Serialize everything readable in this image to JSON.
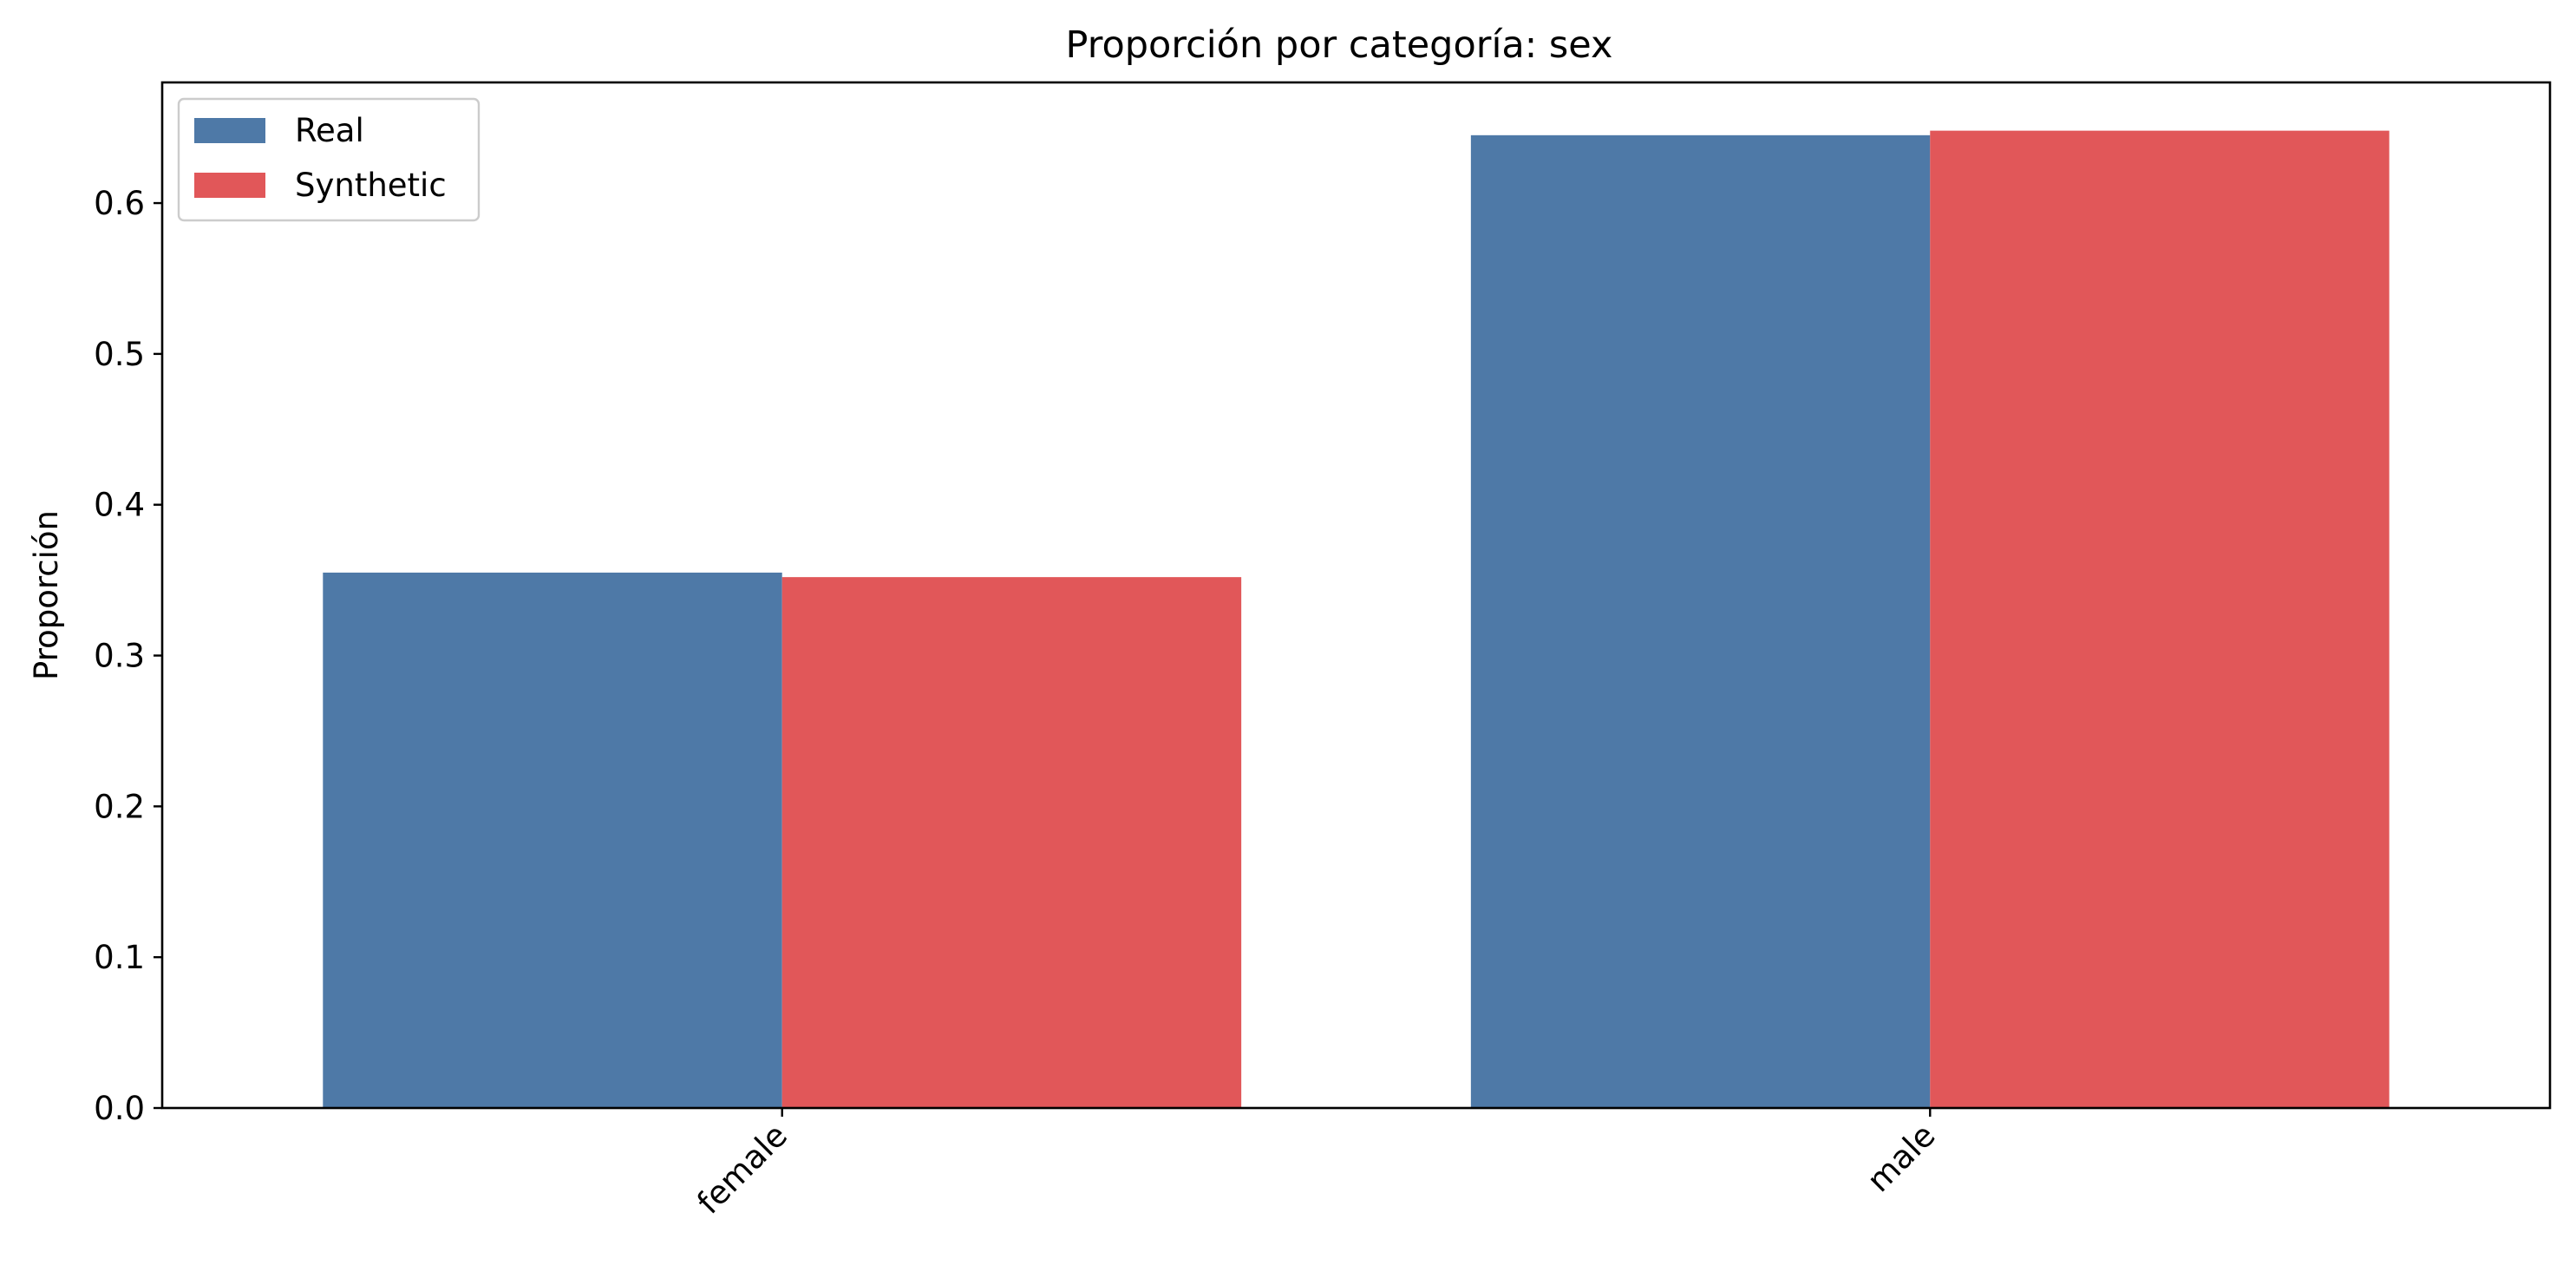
{
  "chart_data": {
    "type": "bar",
    "title": "Proporción por categoría: sex",
    "xlabel": "",
    "ylabel": "Proporción",
    "categories": [
      "female",
      "male"
    ],
    "series": [
      {
        "name": "Real",
        "values": [
          0.355,
          0.645
        ],
        "color": "#4e79a7"
      },
      {
        "name": "Synthetic",
        "values": [
          0.352,
          0.648
        ],
        "color": "#e15759"
      }
    ],
    "ylim": [
      0,
      0.68
    ],
    "yticks": [
      0.0,
      0.1,
      0.2,
      0.3,
      0.4,
      0.5,
      0.6
    ],
    "ytick_labels": [
      "0.0",
      "0.1",
      "0.2",
      "0.3",
      "0.4",
      "0.5",
      "0.6"
    ],
    "grid": false,
    "legend_position": "top-left",
    "x_tick_rotation": 45
  }
}
